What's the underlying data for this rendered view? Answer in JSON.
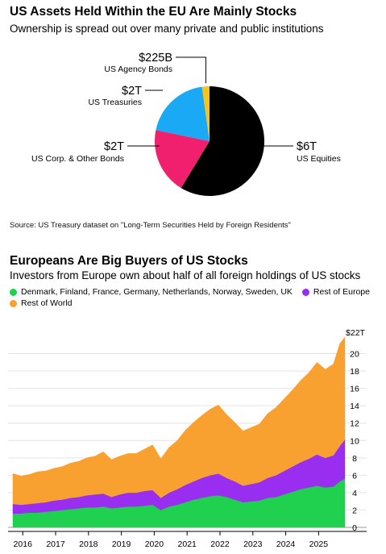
{
  "pie_chart": {
    "title": "US Assets Held Within the EU Are Mainly Stocks",
    "subtitle": "Ownership is spread out over many private and public institutions",
    "source": "Source: US Treasury dataset on \"Long-Term Securities Held by Foreign Residents\""
  },
  "area_chart": {
    "title": "Europeans Are Big Buyers of US Stocks",
    "subtitle": "Investors from Europe own about half of all foreign holdings of US stocks"
  },
  "colors": {
    "green": "#1fd14f",
    "purple": "#9a2ef0",
    "orange": "#f9a130",
    "black": "#000000",
    "blue": "#1aaaf5",
    "pink": "#f0206e",
    "yellow": "#f7c417"
  },
  "chart_data": [
    {
      "type": "pie",
      "slices": [
        {
          "label": "US Equities",
          "value_label": "$6T",
          "value": 6.0,
          "color": "#000000"
        },
        {
          "label": "US Corp. & Other Bonds",
          "value_label": "$2T",
          "value": 2.0,
          "color": "#f0206e"
        },
        {
          "label": "US Treasuries",
          "value_label": "$2T",
          "value": 2.0,
          "color": "#1aaaf5"
        },
        {
          "label": "US Agency Bonds",
          "value_label": "$225B",
          "value": 0.225,
          "color": "#f7c417"
        }
      ]
    },
    {
      "type": "area",
      "stacked": true,
      "y_unit_label": "$22T",
      "ylim": [
        0,
        22
      ],
      "y_ticks": [
        0,
        2,
        4,
        6,
        8,
        10,
        12,
        14,
        16,
        18,
        20
      ],
      "x_ticks": [
        "2016",
        "2017",
        "2018",
        "2019",
        "2020",
        "2021",
        "2022",
        "2023",
        "2024",
        "2025"
      ],
      "x_range": [
        2015.75,
        2025.85
      ],
      "x": [
        2015.75,
        2016.0,
        2016.25,
        2016.5,
        2016.75,
        2017.0,
        2017.25,
        2017.5,
        2017.75,
        2018.0,
        2018.25,
        2018.5,
        2018.75,
        2019.0,
        2019.25,
        2019.5,
        2019.75,
        2020.0,
        2020.25,
        2020.5,
        2020.75,
        2021.0,
        2021.25,
        2021.5,
        2021.75,
        2022.0,
        2022.25,
        2022.5,
        2022.75,
        2023.0,
        2023.25,
        2023.5,
        2023.75,
        2024.0,
        2024.25,
        2024.5,
        2024.75,
        2025.0,
        2025.25,
        2025.5,
        2025.7,
        2025.85
      ],
      "series": [
        {
          "name": "Denmark, Finland, France, Germany, Netherlands, Norway, Sweden, UK",
          "color": "#1fd14f",
          "values": [
            1.6,
            1.6,
            1.7,
            1.7,
            1.8,
            1.9,
            2.0,
            2.1,
            2.2,
            2.3,
            2.3,
            2.4,
            2.2,
            2.3,
            2.4,
            2.4,
            2.5,
            2.6,
            2.0,
            2.4,
            2.6,
            2.9,
            3.2,
            3.4,
            3.6,
            3.7,
            3.5,
            3.2,
            2.9,
            3.0,
            3.1,
            3.4,
            3.5,
            3.8,
            4.1,
            4.4,
            4.6,
            4.8,
            4.6,
            4.7,
            5.3,
            5.6
          ]
        },
        {
          "name": "Rest of Europe",
          "color": "#9a2ef0",
          "values": [
            1.1,
            1.0,
            1.0,
            1.1,
            1.1,
            1.2,
            1.2,
            1.3,
            1.3,
            1.4,
            1.5,
            1.5,
            1.3,
            1.5,
            1.6,
            1.6,
            1.7,
            1.7,
            1.4,
            1.6,
            1.8,
            2.0,
            2.1,
            2.3,
            2.4,
            2.5,
            2.2,
            2.1,
            1.9,
            2.0,
            2.1,
            2.3,
            2.5,
            2.7,
            2.9,
            3.1,
            3.3,
            3.6,
            3.4,
            3.6,
            4.1,
            4.5
          ]
        },
        {
          "name": "Rest of World",
          "color": "#f9a130",
          "values": [
            3.5,
            3.3,
            3.4,
            3.6,
            3.6,
            3.7,
            3.8,
            4.0,
            4.1,
            4.3,
            4.4,
            4.8,
            4.3,
            4.4,
            4.5,
            4.5,
            4.8,
            5.2,
            4.5,
            5.2,
            5.6,
            6.3,
            6.8,
            7.2,
            7.6,
            7.9,
            7.3,
            6.8,
            6.3,
            6.5,
            6.7,
            7.4,
            7.8,
            8.3,
            8.8,
            9.4,
            9.9,
            10.6,
            10.2,
            10.5,
            11.8,
            11.8
          ]
        }
      ]
    }
  ]
}
